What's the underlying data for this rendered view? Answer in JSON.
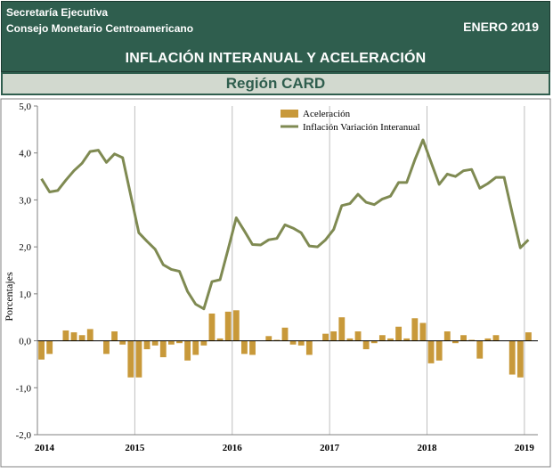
{
  "header": {
    "org_line1": "Secretaría Ejecutiva",
    "org_line2": "Consejo Monetario Centroamericano",
    "date": "ENERO 2019",
    "title": "INFLACIÓN INTERANUAL Y ACELERACIÓN",
    "subtitle": "Región CARD"
  },
  "colors": {
    "header_bg": "#2f5e4e",
    "bar": "#c8993a",
    "line": "#7f8a52"
  },
  "chart_data": {
    "type": "bar+line",
    "ylabel": "Porcentajes",
    "ylim": [
      -2.0,
      5.0
    ],
    "yticks": [
      "-2,0",
      "-1,0",
      "0,0",
      "1,0",
      "2,0",
      "3,0",
      "4,0",
      "5,0"
    ],
    "xticks": [
      "2014",
      "2015",
      "2016",
      "2017",
      "2018",
      "2019"
    ],
    "grid": "vertical year lines",
    "legend_position": "top-center",
    "series": [
      {
        "name": "Aceleración",
        "type": "bar",
        "values": [
          -0.4,
          -0.28,
          0.0,
          0.22,
          0.18,
          0.12,
          0.25,
          0.0,
          -0.28,
          0.2,
          -0.08,
          -0.78,
          -0.78,
          -0.18,
          -0.1,
          -0.35,
          -0.08,
          -0.05,
          -0.42,
          -0.3,
          -0.1,
          0.58,
          0.05,
          0.62,
          0.65,
          -0.28,
          -0.3,
          0.0,
          0.1,
          0.02,
          0.28,
          -0.08,
          -0.1,
          -0.3,
          0.0,
          0.15,
          0.2,
          0.5,
          0.05,
          0.2,
          -0.18,
          -0.05,
          0.12,
          0.05,
          0.3,
          0.05,
          0.48,
          0.38,
          -0.48,
          -0.42,
          0.2,
          -0.05,
          0.12,
          0.02,
          -0.38,
          0.05,
          0.12,
          0.0,
          -0.72,
          -0.78,
          0.18
        ]
      },
      {
        "name": "Inflación Variación Interanual",
        "type": "line",
        "values": [
          3.45,
          3.17,
          3.2,
          3.42,
          3.62,
          3.78,
          4.03,
          4.06,
          3.8,
          3.98,
          3.9,
          3.1,
          2.3,
          2.12,
          1.95,
          1.62,
          1.52,
          1.48,
          1.05,
          0.78,
          0.68,
          1.26,
          1.3,
          1.95,
          2.62,
          2.34,
          2.05,
          2.04,
          2.15,
          2.18,
          2.47,
          2.4,
          2.3,
          2.02,
          2.0,
          2.15,
          2.37,
          2.88,
          2.92,
          3.12,
          2.95,
          2.9,
          3.02,
          3.08,
          3.37,
          3.37,
          3.85,
          4.28,
          3.8,
          3.33,
          3.55,
          3.5,
          3.62,
          3.65,
          3.25,
          3.35,
          3.48,
          3.48,
          2.72,
          1.98,
          2.15
        ]
      }
    ]
  }
}
